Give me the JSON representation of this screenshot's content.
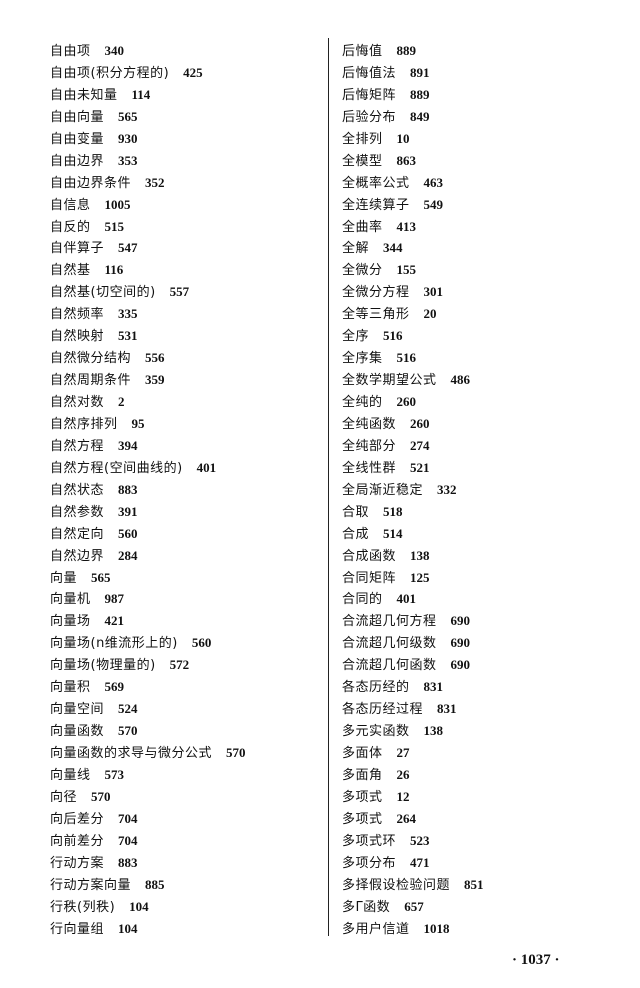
{
  "left_column": [
    {
      "term": "自由项",
      "page": "340"
    },
    {
      "term": "自由项(积分方程的)",
      "page": "425"
    },
    {
      "term": "自由未知量",
      "page": "114"
    },
    {
      "term": "自由向量",
      "page": "565"
    },
    {
      "term": "自由变量",
      "page": "930"
    },
    {
      "term": "自由边界",
      "page": "353"
    },
    {
      "term": "自由边界条件",
      "page": "352"
    },
    {
      "term": "自信息",
      "page": "1005"
    },
    {
      "term": "自反的",
      "page": "515"
    },
    {
      "term": "自伴算子",
      "page": "547"
    },
    {
      "term": "自然基",
      "page": "116"
    },
    {
      "term": "自然基(切空间的)",
      "page": "557"
    },
    {
      "term": "自然频率",
      "page": "335"
    },
    {
      "term": "自然映射",
      "page": "531"
    },
    {
      "term": "自然微分结构",
      "page": "556"
    },
    {
      "term": "自然周期条件",
      "page": "359"
    },
    {
      "term": "自然对数",
      "page": "2"
    },
    {
      "term": "自然序排列",
      "page": "95"
    },
    {
      "term": "自然方程",
      "page": "394"
    },
    {
      "term": "自然方程(空间曲线的)",
      "page": "401"
    },
    {
      "term": "自然状态",
      "page": "883"
    },
    {
      "term": "自然参数",
      "page": "391"
    },
    {
      "term": "自然定向",
      "page": "560"
    },
    {
      "term": "自然边界",
      "page": "284"
    },
    {
      "term": "向量",
      "page": "565"
    },
    {
      "term": "向量机",
      "page": "987"
    },
    {
      "term": "向量场",
      "page": "421"
    },
    {
      "term": "向量场(n维流形上的)",
      "page": "560"
    },
    {
      "term": "向量场(物理量的)",
      "page": "572"
    },
    {
      "term": "向量积",
      "page": "569"
    },
    {
      "term": "向量空间",
      "page": "524"
    },
    {
      "term": "向量函数",
      "page": "570"
    },
    {
      "term": "向量函数的求导与微分公式",
      "page": "570"
    },
    {
      "term": "向量线",
      "page": "573"
    },
    {
      "term": "向径",
      "page": "570"
    },
    {
      "term": "向后差分",
      "page": "704"
    },
    {
      "term": "向前差分",
      "page": "704"
    },
    {
      "term": "行动方案",
      "page": "883"
    },
    {
      "term": "行动方案向量",
      "page": "885"
    },
    {
      "term": "行秩(列秩)",
      "page": "104"
    },
    {
      "term": "行向量组",
      "page": "104"
    }
  ],
  "right_column": [
    {
      "term": "后悔值",
      "page": "889"
    },
    {
      "term": "后悔值法",
      "page": "891"
    },
    {
      "term": "后悔矩阵",
      "page": "889"
    },
    {
      "term": "后验分布",
      "page": "849"
    },
    {
      "term": "全排列",
      "page": "10"
    },
    {
      "term": "全模型",
      "page": "863"
    },
    {
      "term": "全概率公式",
      "page": "463"
    },
    {
      "term": "全连续算子",
      "page": "549"
    },
    {
      "term": "全曲率",
      "page": "413"
    },
    {
      "term": "全解",
      "page": "344"
    },
    {
      "term": "全微分",
      "page": "155"
    },
    {
      "term": "全微分方程",
      "page": "301"
    },
    {
      "term": "全等三角形",
      "page": "20"
    },
    {
      "term": "全序",
      "page": "516"
    },
    {
      "term": "全序集",
      "page": "516"
    },
    {
      "term": "全数学期望公式",
      "page": "486"
    },
    {
      "term": "全纯的",
      "page": "260"
    },
    {
      "term": "全纯函数",
      "page": "260"
    },
    {
      "term": "全纯部分",
      "page": "274"
    },
    {
      "term": "全线性群",
      "page": "521"
    },
    {
      "term": "全局渐近稳定",
      "page": "332"
    },
    {
      "term": "合取",
      "page": "518"
    },
    {
      "term": "合成",
      "page": "514"
    },
    {
      "term": "合成函数",
      "page": "138"
    },
    {
      "term": "合同矩阵",
      "page": "125"
    },
    {
      "term": "合同的",
      "page": "401"
    },
    {
      "term": "合流超几何方程",
      "page": "690"
    },
    {
      "term": "合流超几何级数",
      "page": "690"
    },
    {
      "term": "合流超几何函数",
      "page": "690"
    },
    {
      "term": "各态历经的",
      "page": "831"
    },
    {
      "term": "各态历经过程",
      "page": "831"
    },
    {
      "term": "多元实函数",
      "page": "138"
    },
    {
      "term": "多面体",
      "page": "27"
    },
    {
      "term": "多面角",
      "page": "26"
    },
    {
      "term": "多项式",
      "page": "12"
    },
    {
      "term": "多项式",
      "page": "264"
    },
    {
      "term": "多项式环",
      "page": "523"
    },
    {
      "term": "多项分布",
      "page": "471"
    },
    {
      "term": "多择假设检验问题",
      "page": "851"
    },
    {
      "term": "多Γ函数",
      "page": "657"
    },
    {
      "term": "多用户信道",
      "page": "1018"
    }
  ],
  "page_number": "· 1037 ·"
}
